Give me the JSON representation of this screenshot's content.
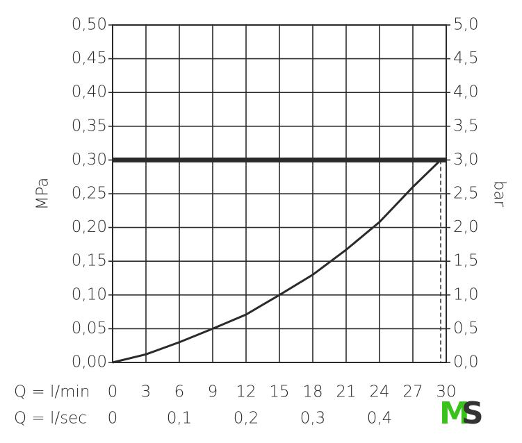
{
  "chart_data": {
    "type": "line",
    "ylabel": "MPa",
    "y2label": "bar",
    "xlabel": "Q = l/min",
    "x2label": "Q = l/sec",
    "xlim": [
      0,
      30
    ],
    "xticks": [
      0,
      3,
      6,
      9,
      12,
      15,
      18,
      21,
      24,
      27,
      30
    ],
    "x2lim": [
      0,
      0.5
    ],
    "x2ticks": [
      0,
      {
        "value": 0.1,
        "label": "0,1"
      },
      {
        "value": 0.2,
        "label": "0,2"
      },
      {
        "value": 0.3,
        "label": "0,3"
      },
      {
        "value": 0.4,
        "label": "0,4"
      }
    ],
    "ylim": [
      0,
      0.5
    ],
    "yticks": [
      {
        "value": 0,
        "label": "0,00"
      },
      {
        "value": 0.05,
        "label": "0,05"
      },
      {
        "value": 0.1,
        "label": "0,10"
      },
      {
        "value": 0.15,
        "label": "0,15"
      },
      {
        "value": 0.2,
        "label": "0,20"
      },
      {
        "value": 0.25,
        "label": "0,25"
      },
      {
        "value": 0.3,
        "label": "0,30"
      },
      {
        "value": 0.35,
        "label": "0,35"
      },
      {
        "value": 0.4,
        "label": "0,40"
      },
      {
        "value": 0.45,
        "label": "0,45"
      },
      {
        "value": 0.5,
        "label": "0,50"
      }
    ],
    "y2lim": [
      0,
      5
    ],
    "y2ticks": [
      {
        "value": 0,
        "label": "0,0"
      },
      {
        "value": 0.5,
        "label": "0,5"
      },
      {
        "value": 1,
        "label": "1,0"
      },
      {
        "value": 1.5,
        "label": "1,5"
      },
      {
        "value": 2,
        "label": "2,0"
      },
      {
        "value": 2.5,
        "label": "2,5"
      },
      {
        "value": 3,
        "label": "3,0"
      },
      {
        "value": 3.5,
        "label": "3,5"
      },
      {
        "value": 4,
        "label": "4,0"
      },
      {
        "value": 4.5,
        "label": "4,5"
      },
      {
        "value": 5,
        "label": "5,0"
      }
    ],
    "grid": true,
    "x": [
      0,
      3,
      6,
      9,
      12,
      15,
      18,
      21,
      24,
      27,
      29.5
    ],
    "series": [
      {
        "color": "#2a2a2a",
        "values": [
          0,
          0.012,
          0.03,
          0.05,
          0.071,
          0.1,
          0.13,
          0.167,
          0.208,
          0.26,
          0.3
        ]
      }
    ],
    "max_pressure": {
      "value": 0.3,
      "color": "#2a2a2a"
    },
    "flow_limit": 29.5
  },
  "logo": [
    "M",
    "S"
  ]
}
